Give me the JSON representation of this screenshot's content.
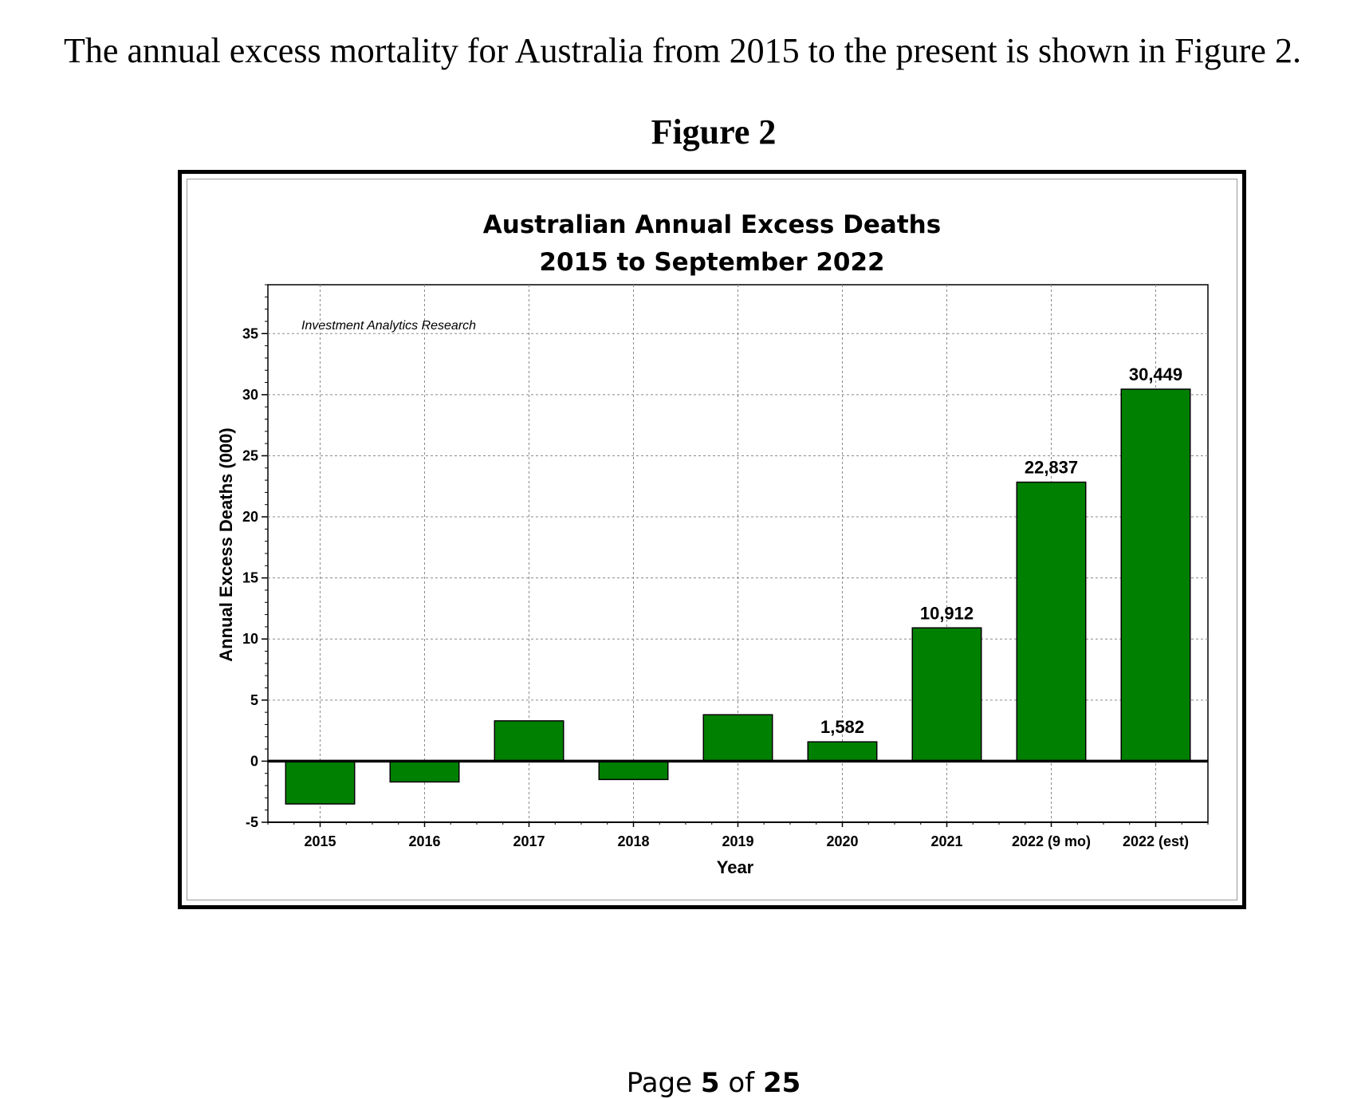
{
  "document": {
    "intro_text": "The annual excess mortality for Australia from 2015 to the present is shown in Figure 2.",
    "figure_label": "Figure 2",
    "footer": {
      "prefix": "Page",
      "page": "5",
      "middle": "of",
      "total": "25"
    }
  },
  "chart_data": {
    "type": "bar",
    "title": "Australian Annual Excess Deaths",
    "subtitle": "2015 to September 2022",
    "annotation": "Investment Analytics Research",
    "xlabel": "Year",
    "ylabel": "Annual Excess Deaths (000)",
    "categories": [
      "2015",
      "2016",
      "2017",
      "2018",
      "2019",
      "2020",
      "2021",
      "2022 (9 mo)",
      "2022 (est)"
    ],
    "values": [
      -3.5,
      -1.7,
      3.3,
      -1.5,
      3.8,
      1.582,
      10.912,
      22.837,
      30.449
    ],
    "data_labels": [
      "",
      "",
      "",
      "",
      "",
      "1,582",
      "10,912",
      "22,837",
      "30,449"
    ],
    "ylim": [
      -5,
      39
    ],
    "yticks": [
      -5,
      0,
      5,
      10,
      15,
      20,
      25,
      30,
      35
    ],
    "grid": true,
    "bar_color": "#008000",
    "zero_line_color": "#000000"
  }
}
